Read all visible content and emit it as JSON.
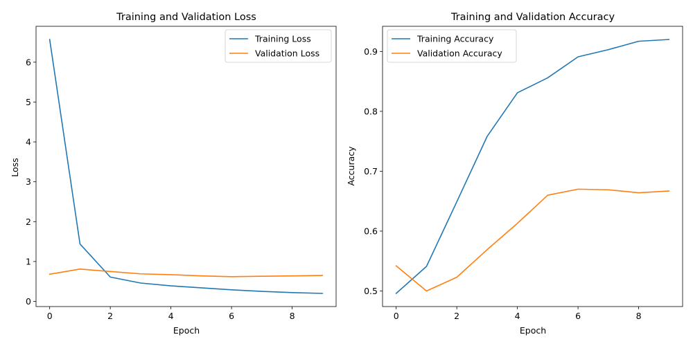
{
  "chart_data": [
    {
      "type": "line",
      "title": "Training and Validation Loss",
      "xlabel": "Epoch",
      "ylabel": "Loss",
      "xlim": [
        -0.45,
        9.45
      ],
      "ylim": [
        -0.13,
        6.9
      ],
      "xticks": [
        0,
        2,
        4,
        6,
        8
      ],
      "yticks": [
        0,
        1,
        2,
        3,
        4,
        5,
        6
      ],
      "xtick_labels": [
        "0",
        "2",
        "4",
        "6",
        "8"
      ],
      "ytick_labels": [
        "0",
        "1",
        "2",
        "3",
        "4",
        "5",
        "6"
      ],
      "grid": false,
      "legend_position": "upper-right",
      "x": [
        0,
        1,
        2,
        3,
        4,
        5,
        6,
        7,
        8,
        9
      ],
      "series": [
        {
          "name": "Training Loss",
          "color": "#1f77b4",
          "values": [
            6.57,
            1.44,
            0.61,
            0.46,
            0.39,
            0.34,
            0.29,
            0.25,
            0.22,
            0.2
          ]
        },
        {
          "name": "Validation Loss",
          "color": "#ff7f0e",
          "values": [
            0.68,
            0.81,
            0.75,
            0.69,
            0.67,
            0.64,
            0.62,
            0.63,
            0.64,
            0.65
          ]
        }
      ]
    },
    {
      "type": "line",
      "title": "Training and Validation Accuracy",
      "xlabel": "Epoch",
      "ylabel": "Accuracy",
      "xlim": [
        -0.45,
        9.45
      ],
      "ylim": [
        0.474,
        0.942
      ],
      "xticks": [
        0,
        2,
        4,
        6,
        8
      ],
      "yticks": [
        0.5,
        0.6,
        0.7,
        0.8,
        0.9
      ],
      "xtick_labels": [
        "0",
        "2",
        "4",
        "6",
        "8"
      ],
      "ytick_labels": [
        "0.5",
        "0.6",
        "0.7",
        "0.8",
        "0.9"
      ],
      "grid": false,
      "legend_position": "upper-left",
      "x": [
        0,
        1,
        2,
        3,
        4,
        5,
        6,
        7,
        8,
        9
      ],
      "series": [
        {
          "name": "Training Accuracy",
          "color": "#1f77b4",
          "values": [
            0.496,
            0.541,
            0.649,
            0.758,
            0.831,
            0.856,
            0.891,
            0.903,
            0.917,
            0.92
          ]
        },
        {
          "name": "Validation Accuracy",
          "color": "#ff7f0e",
          "values": [
            0.542,
            0.5,
            0.523,
            0.569,
            0.613,
            0.66,
            0.67,
            0.669,
            0.664,
            0.667
          ]
        }
      ]
    }
  ]
}
